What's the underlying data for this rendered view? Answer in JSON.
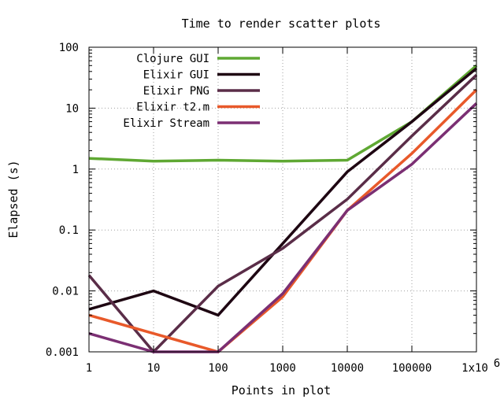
{
  "chart_data": {
    "type": "line",
    "title": "Time to render scatter plots",
    "xlabel": "Points in plot",
    "ylabel": "Elapsed (s)",
    "xscale": "log",
    "yscale": "log",
    "xlim": [
      1,
      1000000
    ],
    "ylim": [
      0.001,
      100
    ],
    "grid": true,
    "legend_position": "top-left",
    "x": [
      1,
      10,
      100,
      1000,
      10000,
      100000,
      1000000
    ],
    "x_tick_labels": [
      "1",
      "10",
      "100",
      "1000",
      "10000",
      "100000",
      "1x10"
    ],
    "x_tick_last_exponent": "6",
    "y_tick_values": [
      0.001,
      0.01,
      0.1,
      1,
      10,
      100
    ],
    "y_tick_labels": [
      "0.001",
      "0.01",
      "0.1",
      "1",
      "10",
      "100"
    ],
    "series": [
      {
        "name": "Clojure GUI",
        "color": "#5fa833",
        "values": [
          1.5,
          1.35,
          1.4,
          1.35,
          1.4,
          6,
          50
        ]
      },
      {
        "name": "Elixir GUI",
        "color": "#1e0612",
        "values": [
          0.005,
          0.01,
          0.004,
          0.06,
          0.9,
          6,
          45
        ]
      },
      {
        "name": "Elixir PNG",
        "color": "#5a2d48",
        "values": [
          0.018,
          0.001,
          0.012,
          0.05,
          0.32,
          3.5,
          35
        ]
      },
      {
        "name": "Elixir t2.m",
        "color": "#e8592a",
        "values": [
          0.004,
          0.002,
          0.001,
          0.008,
          0.21,
          1.8,
          20
        ]
      },
      {
        "name": "Elixir Stream",
        "color": "#7b2f73",
        "values": [
          0.002,
          0.001,
          0.001,
          0.009,
          0.21,
          1.2,
          12
        ]
      }
    ]
  }
}
